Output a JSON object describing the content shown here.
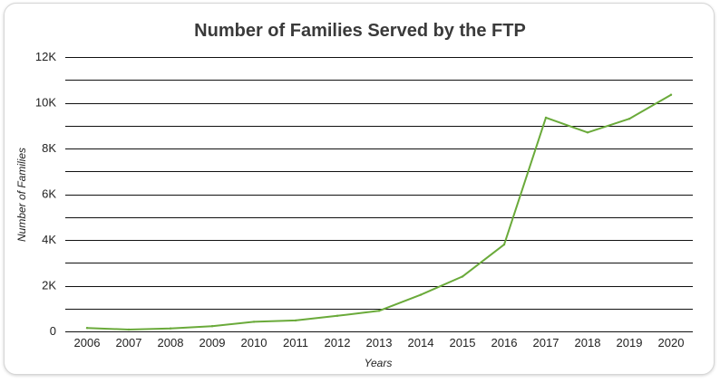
{
  "chart_data": {
    "type": "line",
    "title": "Number of Families Served by the FTP",
    "xlabel": "Years",
    "ylabel": "Number of Families",
    "x": [
      "2006",
      "2007",
      "2008",
      "2009",
      "2010",
      "2011",
      "2012",
      "2013",
      "2014",
      "2015",
      "2016",
      "2017",
      "2018",
      "2019",
      "2020"
    ],
    "series": [
      {
        "values": [
          150,
          80,
          130,
          230,
          420,
          480,
          680,
          900,
          1600,
          2400,
          3800,
          9350,
          8700,
          9300,
          10350
        ]
      }
    ],
    "ylim": [
      0,
      12000
    ],
    "yticks": [
      0,
      2000,
      4000,
      6000,
      8000,
      10000,
      12000
    ],
    "ytick_labels": [
      "0",
      "2K",
      "4K",
      "6K",
      "8K",
      "10K",
      "12K"
    ],
    "grid": "horizontal",
    "legend": "none",
    "colors": {
      "line": "#6aaa3a",
      "grid": "#111111",
      "background": "#ffffff"
    }
  }
}
